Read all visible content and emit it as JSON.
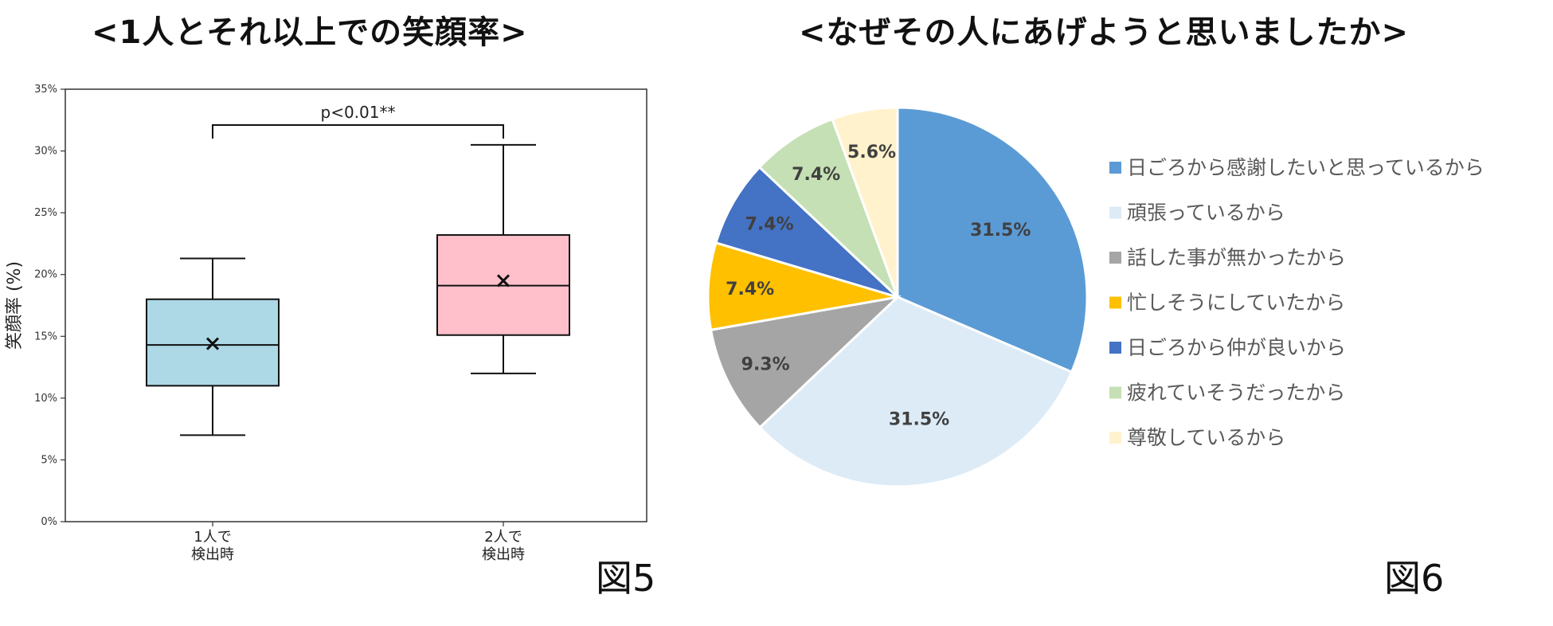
{
  "figure5": {
    "title": "<1人とそれ以上での笑顔率>",
    "label": "図5",
    "chart_data": {
      "type": "box",
      "ylabel": "笑顔率 (%)",
      "ylim": [
        0,
        35
      ],
      "yticks": [
        "0%",
        "5%",
        "10%",
        "15%",
        "20%",
        "25%",
        "30%",
        "35%"
      ],
      "categories": [
        [
          "1人で",
          "検出時"
        ],
        [
          "2人で",
          "検出時"
        ]
      ],
      "boxes": [
        {
          "whisker_low": 7.0,
          "q1": 11.0,
          "median": 14.3,
          "q3": 18.0,
          "whisker_high": 21.3,
          "mean": 14.4,
          "color": "#ADD8E6"
        },
        {
          "whisker_low": 12.0,
          "q1": 15.1,
          "median": 19.1,
          "q3": 23.2,
          "whisker_high": 30.5,
          "mean": 19.5,
          "color": "#FFC0CB"
        }
      ],
      "significance": {
        "text": "p<0.01**",
        "between": [
          0,
          1
        ],
        "y": 32.1
      },
      "grid": false
    }
  },
  "figure6": {
    "title": "<なぜその人にあげようと思いましたか>",
    "label": "図6",
    "chart_data": {
      "type": "pie",
      "legend_position": "right",
      "slices": [
        {
          "label": "日ごろから感謝したいと思っているから",
          "value": 31.5,
          "text": "31.5%",
          "color": "#5B9BD5"
        },
        {
          "label": "頑張っているから",
          "value": 31.5,
          "text": "31.5%",
          "color": "#DDEBF7"
        },
        {
          "label": "話した事が無かったから",
          "value": 9.3,
          "text": "9.3%",
          "color": "#A5A5A5"
        },
        {
          "label": "忙しそうにしていたから",
          "value": 7.4,
          "text": "7.4%",
          "color": "#FFC000"
        },
        {
          "label": "日ごろから仲が良いから",
          "value": 7.4,
          "text": "7.4%",
          "color": "#4472C4"
        },
        {
          "label": "疲れていそうだったから",
          "value": 7.4,
          "text": "7.4%",
          "color": "#C5E0B4"
        },
        {
          "label": "尊敬しているから",
          "value": 5.6,
          "text": "5.6%",
          "color": "#FFF2CC"
        }
      ]
    }
  }
}
